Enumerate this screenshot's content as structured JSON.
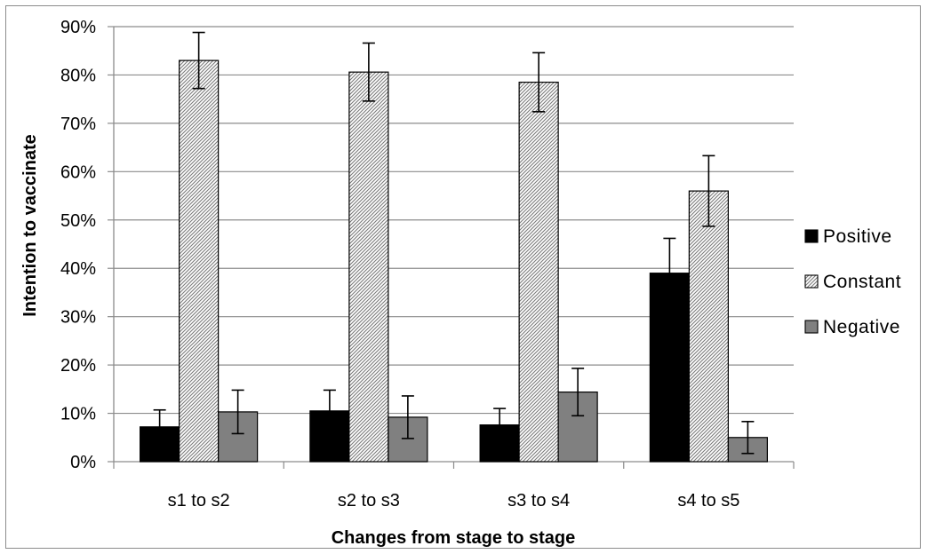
{
  "chart_data": {
    "type": "bar",
    "title": "",
    "xlabel": "Changes from stage to stage",
    "ylabel": "Intention to vaccinate",
    "ylim": [
      0,
      90
    ],
    "y_ticks": [
      "0%",
      "10%",
      "20%",
      "30%",
      "40%",
      "50%",
      "60%",
      "70%",
      "80%",
      "90%"
    ],
    "y_unit": "%",
    "grid": true,
    "legend_position": "right",
    "categories": [
      "s1 to s2",
      "s2 to s3",
      "s3 to s4",
      "s4 to s5"
    ],
    "series": [
      {
        "name": "Positive",
        "fill": "solid",
        "color": "#000000",
        "values": [
          7.2,
          10.5,
          7.6,
          39.0
        ],
        "error": [
          3.5,
          4.3,
          3.4,
          7.2
        ]
      },
      {
        "name": "Constant",
        "fill": "hatched",
        "color": "#d9d9d9",
        "values": [
          83.0,
          80.6,
          78.5,
          56.0
        ],
        "error": [
          5.8,
          6.0,
          6.1,
          7.3
        ]
      },
      {
        "name": "Negative",
        "fill": "solid",
        "color": "#808080",
        "values": [
          10.3,
          9.2,
          14.4,
          5.0
        ],
        "error": [
          4.5,
          4.4,
          4.9,
          3.3
        ]
      }
    ]
  }
}
